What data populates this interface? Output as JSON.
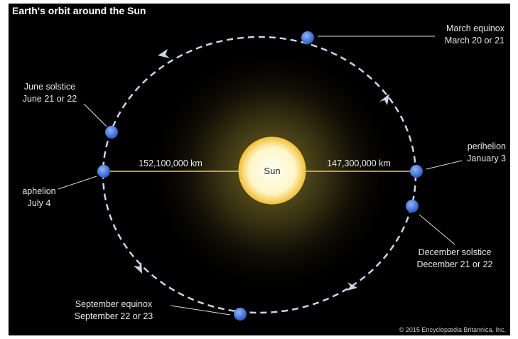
{
  "header": {
    "title": "Earth's orbit around the Sun"
  },
  "sun": {
    "label": "Sun"
  },
  "distances": {
    "aphelion": "152,100,000 km",
    "perihelion": "147,300,000 km"
  },
  "positions": [
    {
      "name": "March equinox",
      "date": "March 20 or 21"
    },
    {
      "name": "June solstice",
      "date": "June 21 or 22"
    },
    {
      "name": "aphelion",
      "date": "July 4"
    },
    {
      "name": "perihelion",
      "date": "January 3"
    },
    {
      "name": "December solstice",
      "date": "December 21 or 22"
    },
    {
      "name": "September equinox",
      "date": "September 22 or 23"
    }
  ],
  "footer": {
    "copyright": "© 2015 Encyclopædia Britannica, Inc."
  }
}
